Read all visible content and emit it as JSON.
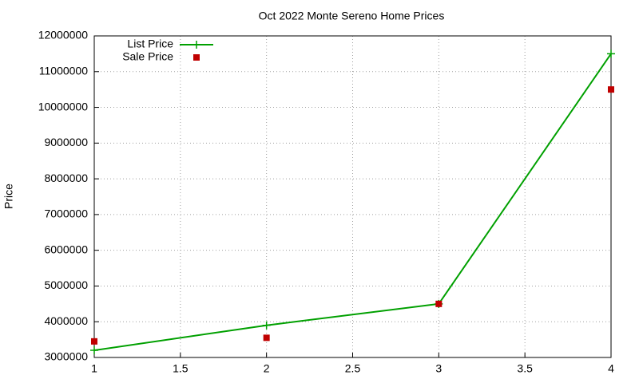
{
  "chart_data": {
    "type": "line",
    "title": "Oct 2022 Monte Sereno Home Prices",
    "y_label": "Price",
    "x": [
      1,
      2,
      3,
      4
    ],
    "series": [
      {
        "name": "List Price",
        "color": "#00a000",
        "mode": "lines+points",
        "values": [
          3200000,
          3900000,
          4500000,
          11500000
        ]
      },
      {
        "name": "Sale Price",
        "color": "#c00000",
        "mode": "points",
        "values": [
          3450000,
          3550000,
          4500000,
          10500000
        ]
      }
    ],
    "xlim": [
      1,
      4
    ],
    "xticks": [
      1,
      1.5,
      2,
      2.5,
      3,
      3.5,
      4
    ],
    "ylim": [
      3000000,
      12000000
    ],
    "yticks": [
      3000000,
      4000000,
      5000000,
      6000000,
      7000000,
      8000000,
      9000000,
      10000000,
      11000000,
      12000000
    ],
    "grid": true,
    "legend": "top-left"
  }
}
